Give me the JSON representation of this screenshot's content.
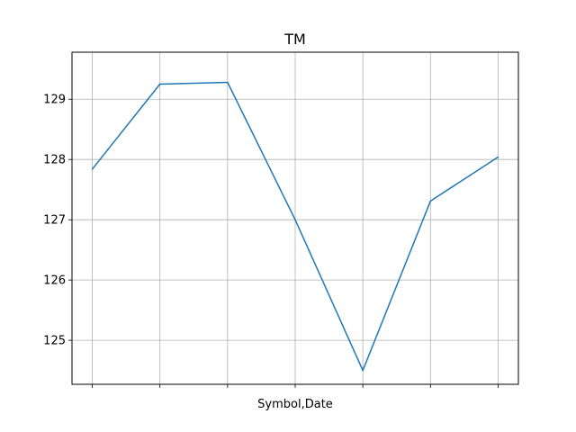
{
  "chart_data": {
    "type": "line",
    "title": "TM",
    "xlabel": "Symbol,Date",
    "ylabel": "",
    "x": [
      0,
      1,
      2,
      3,
      4,
      5,
      6
    ],
    "x_tick_labels": [
      "",
      "",
      "",
      "",
      "",
      "",
      ""
    ],
    "xlim": [
      -0.3,
      6.3
    ],
    "ylim": [
      124.27,
      129.78
    ],
    "y_ticks": [
      125,
      126,
      127,
      128,
      129
    ],
    "grid": true,
    "legend": "none",
    "series": [
      {
        "color": "#1f77b4",
        "values": [
          127.84,
          129.25,
          129.28,
          127.0,
          124.5,
          127.31,
          128.04
        ]
      }
    ]
  }
}
